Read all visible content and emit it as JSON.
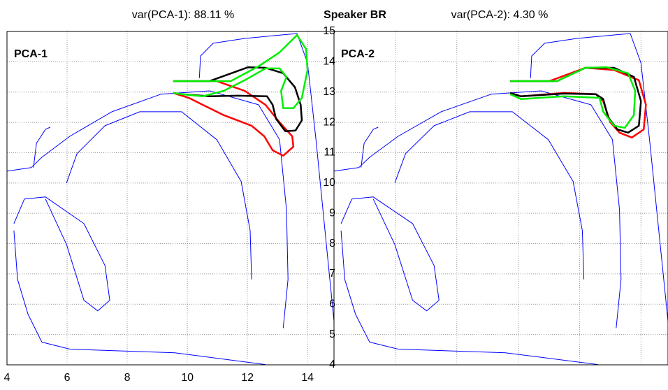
{
  "title": "Speaker BR",
  "chart_data": [
    {
      "type": "line",
      "title": "PCA-1",
      "subtitle": "var(PCA-1): 88.11 %",
      "xlim": [
        4,
        14.88
      ],
      "ylim": [
        4,
        15
      ],
      "xticks": [
        4,
        6,
        8,
        10,
        12,
        14
      ],
      "yticks": [
        4,
        5,
        6,
        7,
        8,
        9,
        10,
        11,
        12,
        13,
        14,
        15
      ],
      "grid": true,
      "xtick_labels": true,
      "ytick_labels": false,
      "series": [
        {
          "color": "#0000ff",
          "width": 1,
          "x": [
            10.4,
            10.44,
            10.86,
            11.91,
            13.07,
            13.65,
            14.0,
            14.28,
            14.58,
            14.88,
            null,
            4,
            4.81,
            5.16,
            6.09,
            7.49,
            9.12,
            10.74,
            12.37,
            13.07,
            13.3,
            13.35,
            13.19,
            null,
            5.98,
            6.33,
            7.26,
            8.42,
            9.81,
            10.98,
            11.79,
            12.09,
            12.14,
            null,
            4.23,
            4.58,
            5.28,
            6.56,
            7.26,
            7.42,
            7.02,
            6.56,
            5.98,
            5.28,
            null,
            4.23,
            4.35,
            4.7,
            5.16,
            6.09,
            9.58,
            12.6,
            null,
            4.88,
            4.98,
            5.28,
            5.44
          ],
          "values": [
            13.46,
            14.19,
            14.61,
            14.77,
            14.88,
            14.93,
            13.96,
            11.43,
            8.43,
            5.44,
            null,
            10.39,
            10.51,
            10.85,
            11.54,
            12.35,
            12.93,
            13.04,
            12.58,
            11.43,
            9.12,
            6.82,
            5.21,
            null,
            10.0,
            10.97,
            11.89,
            12.35,
            12.35,
            11.43,
            10.05,
            8.43,
            6.82,
            null,
            8.66,
            9.47,
            9.54,
            8.66,
            7.28,
            6.13,
            5.78,
            6.13,
            7.97,
            9.47,
            null,
            8.43,
            6.82,
            5.67,
            4.75,
            4.52,
            4.4,
            4.01,
            null,
            10.51,
            11.31,
            11.77,
            11.84
          ]
        },
        {
          "color": "#ff0000",
          "width": 2.5,
          "x": [
            9.53,
            10.98,
            11.91,
            12.6,
            13.07,
            13.49,
            13.53,
            13.19,
            12.84,
            12.56,
            12.14,
            11.21,
            10.51,
            10.05,
            9.53
          ],
          "values": [
            13.36,
            13.36,
            13.04,
            12.58,
            12.0,
            11.54,
            11.2,
            10.9,
            11.08,
            11.54,
            11.89,
            12.24,
            12.58,
            12.81,
            12.97
          ]
        },
        {
          "color": "#000000",
          "width": 2.5,
          "x": [
            9.53,
            10.74,
            12.02,
            12.6,
            13.19,
            13.58,
            13.77,
            13.81,
            13.6,
            13.26,
            12.95,
            12.84,
            12.65,
            11.67,
            10.74,
            9.81,
            9.53
          ],
          "values": [
            13.36,
            13.36,
            13.82,
            13.8,
            13.62,
            13.16,
            12.58,
            12.07,
            11.73,
            11.71,
            12.12,
            12.58,
            12.86,
            12.88,
            12.86,
            12.93,
            12.97
          ]
        },
        {
          "color": "#00ee00",
          "width": 2.5,
          "x": [
            9.53,
            11.44,
            12.37,
            13.07,
            13.65,
            13.95,
            14.0,
            13.81,
            13.53,
            13.19,
            13.12,
            13.3,
            13.07,
            12.6,
            11.91,
            11.21,
            10.51,
            9.81,
            9.53
          ],
          "values": [
            13.36,
            13.36,
            13.85,
            14.31,
            14.88,
            14.42,
            13.73,
            12.81,
            12.47,
            12.47,
            13.04,
            13.5,
            13.78,
            13.78,
            13.39,
            13.04,
            12.86,
            12.93,
            12.97
          ]
        }
      ]
    },
    {
      "type": "line",
      "title": "PCA-2",
      "subtitle": "var(PCA-2):  4.30 %",
      "xlim": [
        4,
        14.88
      ],
      "ylim": [
        4,
        15
      ],
      "xticks": [
        4,
        6,
        8,
        10,
        12,
        14
      ],
      "yticks": [
        4,
        5,
        6,
        7,
        8,
        9,
        10,
        11,
        12,
        13,
        14,
        15
      ],
      "grid": true,
      "xtick_labels": false,
      "ytick_labels": true,
      "series": [
        {
          "color": "#0000ff",
          "width": 1,
          "x": [
            10.4,
            10.44,
            10.86,
            11.91,
            13.07,
            13.65,
            14.0,
            14.28,
            14.58,
            14.88,
            null,
            4,
            4.81,
            5.16,
            6.09,
            7.49,
            9.12,
            10.74,
            12.37,
            13.07,
            13.3,
            13.35,
            13.19,
            null,
            5.98,
            6.33,
            7.26,
            8.42,
            9.81,
            10.98,
            11.79,
            12.09,
            12.14,
            null,
            4.23,
            4.58,
            5.28,
            6.56,
            7.26,
            7.42,
            7.02,
            6.56,
            5.98,
            5.28,
            null,
            4.23,
            4.35,
            4.7,
            5.16,
            6.09,
            9.58,
            12.6,
            null,
            4.88,
            4.98,
            5.28,
            5.44
          ],
          "values": [
            13.46,
            14.19,
            14.61,
            14.77,
            14.88,
            14.93,
            13.96,
            11.43,
            8.43,
            5.44,
            null,
            10.39,
            10.51,
            10.85,
            11.54,
            12.35,
            12.93,
            13.04,
            12.58,
            11.43,
            9.12,
            6.82,
            5.21,
            null,
            10.0,
            10.97,
            11.89,
            12.35,
            12.35,
            11.43,
            10.05,
            8.43,
            6.82,
            null,
            8.66,
            9.47,
            9.54,
            8.66,
            7.28,
            6.13,
            5.78,
            6.13,
            7.97,
            9.47,
            null,
            8.43,
            6.82,
            5.67,
            4.75,
            4.52,
            4.4,
            4.01,
            null,
            10.51,
            11.31,
            11.77,
            11.84
          ]
        },
        {
          "color": "#ff0000",
          "width": 2.5,
          "x": [
            9.74,
            11.02,
            12.19,
            13.12,
            13.93,
            14.16,
            14.09,
            13.7,
            13.3,
            13.0,
            12.77,
            12.53,
            11.49,
            10.09,
            9.74
          ],
          "values": [
            13.36,
            13.36,
            13.8,
            13.73,
            13.39,
            12.58,
            11.77,
            11.5,
            11.66,
            12.0,
            12.7,
            12.93,
            12.97,
            12.86,
            12.97
          ]
        },
        {
          "color": "#000000",
          "width": 2.5,
          "x": [
            9.74,
            11.26,
            12.19,
            13.12,
            13.77,
            14.0,
            13.93,
            13.58,
            13.23,
            12.93,
            12.77,
            12.53,
            11.49,
            10.09,
            9.74
          ],
          "values": [
            13.36,
            13.36,
            13.8,
            13.8,
            13.5,
            12.7,
            11.89,
            11.66,
            11.77,
            12.17,
            12.77,
            12.93,
            12.95,
            12.86,
            12.97
          ]
        },
        {
          "color": "#00ee00",
          "width": 2.5,
          "x": [
            9.74,
            11.26,
            12.19,
            12.88,
            13.58,
            13.81,
            13.77,
            13.47,
            13.12,
            12.77,
            12.65,
            11.49,
            10.09,
            9.74
          ],
          "values": [
            13.36,
            13.36,
            13.8,
            13.82,
            13.62,
            13.04,
            12.24,
            11.82,
            11.89,
            12.35,
            12.81,
            12.86,
            12.77,
            12.93
          ]
        }
      ]
    }
  ]
}
